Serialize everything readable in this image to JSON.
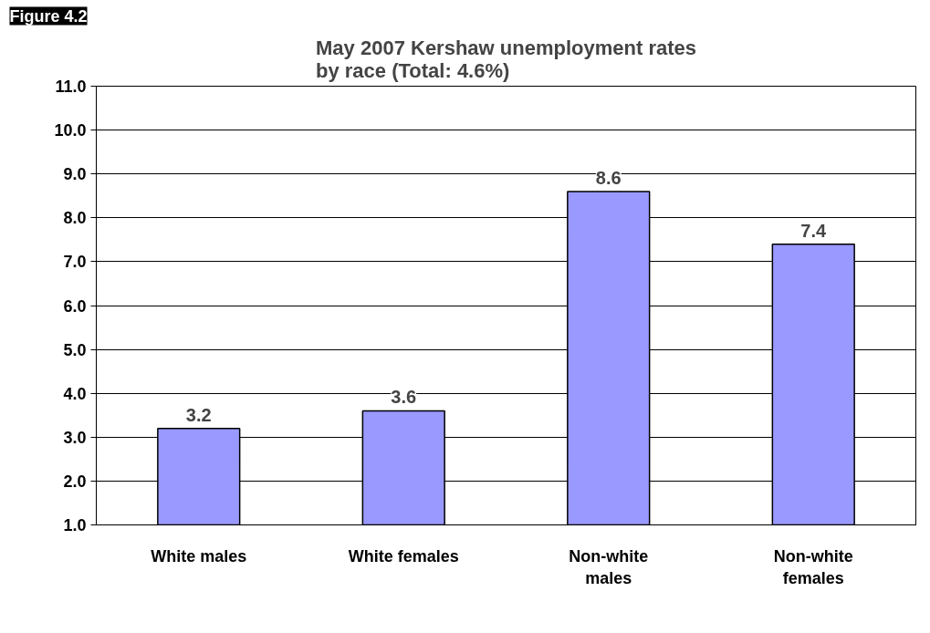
{
  "chart_data": {
    "type": "bar",
    "title": "May 2007 Kershaw unemployment rates by race (Total: 4.6%)",
    "categories": [
      "White males",
      "White females",
      "Non-white males",
      "Non-white females"
    ],
    "values": [
      3.2,
      3.6,
      8.6,
      7.4
    ],
    "color": "#9999ff",
    "ylim": [
      1,
      11
    ],
    "yticks": [
      {
        "value": 1,
        "label": "1.0"
      },
      {
        "value": 2,
        "label": "2.0"
      },
      {
        "value": 3,
        "label": "3.0"
      },
      {
        "value": 4,
        "label": "4.0"
      },
      {
        "value": 5,
        "label": "5.0"
      },
      {
        "value": 6,
        "label": "6.0"
      },
      {
        "value": 7,
        "label": "7.0"
      },
      {
        "value": 8,
        "label": "8.0"
      },
      {
        "value": 9,
        "label": "9.0"
      },
      {
        "value": 10,
        "label": "10.0"
      },
      {
        "value": 11,
        "label": "11.0"
      }
    ],
    "grid": "y",
    "data_labels": true,
    "annotations": [
      "Figure 4.2"
    ]
  }
}
